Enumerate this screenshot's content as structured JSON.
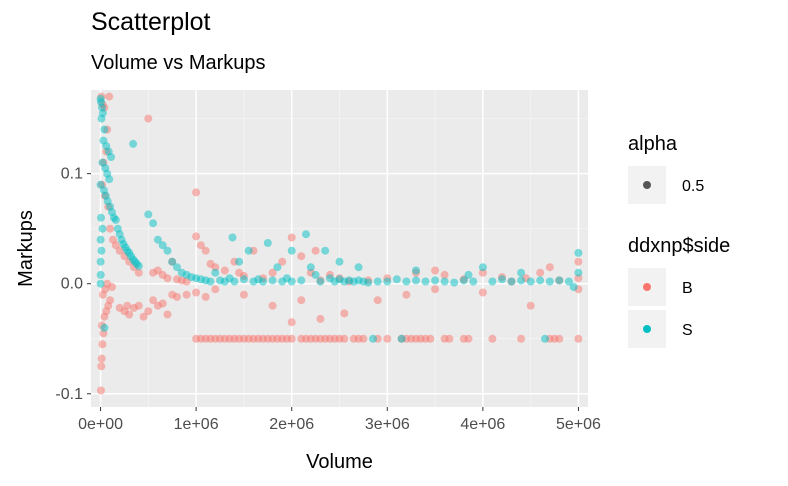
{
  "chart_data": {
    "type": "scatter",
    "title": "Scatterplot",
    "subtitle": "Volume vs Markups",
    "xlabel": "Volume",
    "ylabel": "Markups",
    "xlim": [
      -100000,
      5100000
    ],
    "ylim": [
      -0.112,
      0.176
    ],
    "x_ticks": [
      0,
      1000000,
      2000000,
      3000000,
      4000000,
      5000000
    ],
    "x_tick_labels": [
      "0e+00",
      "1e+06",
      "2e+06",
      "3e+06",
      "4e+06",
      "5e+06"
    ],
    "y_ticks": [
      -0.1,
      0.0,
      0.1
    ],
    "y_tick_labels": [
      "-0.1",
      "0.0",
      "0.1"
    ],
    "grid": true,
    "legend_position": "right",
    "legends": [
      {
        "title": "alpha",
        "entries": [
          {
            "label": "0.5",
            "color": "#000000"
          }
        ]
      },
      {
        "title": "ddxnp$side",
        "entries": [
          {
            "label": "B",
            "color": "#F8766D"
          },
          {
            "label": "S",
            "color": "#00BFC4"
          }
        ]
      }
    ],
    "point_alpha": 0.5,
    "series": [
      {
        "name": "B",
        "color": "#F8766D",
        "points": [
          [
            5000,
            -0.097
          ],
          [
            8000,
            -0.075
          ],
          [
            12000,
            -0.068
          ],
          [
            20000,
            -0.055
          ],
          [
            30000,
            -0.045
          ],
          [
            15000,
            -0.038
          ],
          [
            40000,
            -0.03
          ],
          [
            60000,
            -0.025
          ],
          [
            80000,
            -0.02
          ],
          [
            100000,
            -0.015
          ],
          [
            25000,
            -0.01
          ],
          [
            50000,
            -0.005
          ],
          [
            70000,
            0.0
          ],
          [
            120000,
            -0.003
          ],
          [
            10000,
            0.17
          ],
          [
            20000,
            0.163
          ],
          [
            40000,
            0.16
          ],
          [
            90000,
            0.17
          ],
          [
            70000,
            0.14
          ],
          [
            60000,
            0.12
          ],
          [
            30000,
            0.11
          ],
          [
            15000,
            0.09
          ],
          [
            45000,
            0.08
          ],
          [
            80000,
            0.07
          ],
          [
            100000,
            0.05
          ],
          [
            130000,
            0.04
          ],
          [
            160000,
            0.035
          ],
          [
            200000,
            0.03
          ],
          [
            250000,
            0.025
          ],
          [
            300000,
            0.02
          ],
          [
            350000,
            0.015
          ],
          [
            400000,
            0.01
          ],
          [
            500000,
            0.15
          ],
          [
            550000,
            0.01
          ],
          [
            600000,
            0.012
          ],
          [
            650000,
            0.008
          ],
          [
            700000,
            0.005
          ],
          [
            750000,
            0.02
          ],
          [
            800000,
            0.004
          ],
          [
            850000,
            0.003
          ],
          [
            900000,
            0.002
          ],
          [
            1000000,
            0.083
          ],
          [
            1000000,
            0.043
          ],
          [
            1050000,
            0.035
          ],
          [
            1100000,
            0.03
          ],
          [
            1150000,
            0.018
          ],
          [
            1200000,
            0.015
          ],
          [
            1300000,
            0.012
          ],
          [
            1400000,
            0.02
          ],
          [
            1450000,
            0.01
          ],
          [
            1500000,
            0.007
          ],
          [
            1600000,
            0.03
          ],
          [
            1700000,
            0.005
          ],
          [
            1800000,
            0.01
          ],
          [
            1900000,
            0.02
          ],
          [
            2000000,
            0.042
          ],
          [
            2100000,
            0.025
          ],
          [
            2200000,
            0.01
          ],
          [
            2250000,
            0.03
          ],
          [
            2300000,
            0.003
          ],
          [
            2400000,
            0.008
          ],
          [
            2500000,
            0.005
          ],
          [
            2600000,
            0.002
          ],
          [
            2800000,
            0.003
          ],
          [
            3000000,
            0.005
          ],
          [
            3300000,
            0.01
          ],
          [
            3500000,
            0.012
          ],
          [
            3600000,
            0.008
          ],
          [
            3800000,
            0.004
          ],
          [
            4000000,
            0.01
          ],
          [
            4200000,
            0.006
          ],
          [
            4300000,
            0.002
          ],
          [
            4450000,
            0.005
          ],
          [
            4600000,
            0.01
          ],
          [
            4700000,
            0.015
          ],
          [
            4800000,
            0.003
          ],
          [
            5000000,
            0.02
          ],
          [
            5000000,
            -0.005
          ],
          [
            200000,
            -0.022
          ],
          [
            250000,
            -0.025
          ],
          [
            280000,
            -0.02
          ],
          [
            300000,
            -0.028
          ],
          [
            350000,
            -0.022
          ],
          [
            400000,
            -0.02
          ],
          [
            450000,
            -0.03
          ],
          [
            500000,
            -0.025
          ],
          [
            550000,
            -0.015
          ],
          [
            600000,
            -0.02
          ],
          [
            650000,
            -0.018
          ],
          [
            700000,
            -0.028
          ],
          [
            750000,
            -0.01
          ],
          [
            800000,
            -0.012
          ],
          [
            900000,
            -0.01
          ],
          [
            1000000,
            -0.008
          ],
          [
            1100000,
            -0.012
          ],
          [
            1200000,
            -0.005
          ],
          [
            1500000,
            -0.01
          ],
          [
            1800000,
            -0.02
          ],
          [
            2000000,
            -0.035
          ],
          [
            2100000,
            -0.015
          ],
          [
            2300000,
            -0.032
          ],
          [
            2550000,
            -0.027
          ],
          [
            2900000,
            -0.015
          ],
          [
            3200000,
            -0.01
          ],
          [
            3500000,
            -0.005
          ],
          [
            4000000,
            -0.008
          ],
          [
            4500000,
            -0.02
          ],
          [
            5000000,
            0.005
          ],
          [
            1000000,
            -0.05
          ],
          [
            1050000,
            -0.05
          ],
          [
            1100000,
            -0.05
          ],
          [
            1150000,
            -0.05
          ],
          [
            1200000,
            -0.05
          ],
          [
            1250000,
            -0.05
          ],
          [
            1300000,
            -0.05
          ],
          [
            1350000,
            -0.05
          ],
          [
            1400000,
            -0.05
          ],
          [
            1450000,
            -0.05
          ],
          [
            1500000,
            -0.05
          ],
          [
            1550000,
            -0.05
          ],
          [
            1600000,
            -0.05
          ],
          [
            1650000,
            -0.05
          ],
          [
            1700000,
            -0.05
          ],
          [
            1750000,
            -0.05
          ],
          [
            1800000,
            -0.05
          ],
          [
            1850000,
            -0.05
          ],
          [
            1900000,
            -0.05
          ],
          [
            1950000,
            -0.05
          ],
          [
            2000000,
            -0.05
          ],
          [
            2100000,
            -0.05
          ],
          [
            2150000,
            -0.05
          ],
          [
            2200000,
            -0.05
          ],
          [
            2250000,
            -0.05
          ],
          [
            2300000,
            -0.05
          ],
          [
            2350000,
            -0.05
          ],
          [
            2400000,
            -0.05
          ],
          [
            2450000,
            -0.05
          ],
          [
            2500000,
            -0.05
          ],
          [
            2550000,
            -0.05
          ],
          [
            2650000,
            -0.05
          ],
          [
            2700000,
            -0.05
          ],
          [
            2750000,
            -0.05
          ],
          [
            2900000,
            -0.05
          ],
          [
            3000000,
            -0.05
          ],
          [
            3150000,
            -0.05
          ],
          [
            3200000,
            -0.05
          ],
          [
            3250000,
            -0.05
          ],
          [
            3300000,
            -0.05
          ],
          [
            3350000,
            -0.05
          ],
          [
            3400000,
            -0.05
          ],
          [
            3450000,
            -0.05
          ],
          [
            3600000,
            -0.05
          ],
          [
            3650000,
            -0.05
          ],
          [
            3800000,
            -0.05
          ],
          [
            3850000,
            -0.05
          ],
          [
            4100000,
            -0.05
          ],
          [
            4400000,
            -0.05
          ],
          [
            4700000,
            -0.05
          ],
          [
            4750000,
            -0.05
          ],
          [
            4800000,
            -0.05
          ],
          [
            5000000,
            -0.05
          ]
        ]
      },
      {
        "name": "S",
        "color": "#00BFC4",
        "points": [
          [
            0,
            0.168
          ],
          [
            5000,
            0.165
          ],
          [
            15000,
            0.16
          ],
          [
            25000,
            0.155
          ],
          [
            10000,
            0.15
          ],
          [
            40000,
            0.14
          ],
          [
            30000,
            0.13
          ],
          [
            60000,
            0.125
          ],
          [
            85000,
            0.12
          ],
          [
            110000,
            0.115
          ],
          [
            20000,
            0.11
          ],
          [
            50000,
            0.105
          ],
          [
            70000,
            0.1
          ],
          [
            90000,
            0.095
          ],
          [
            0,
            0.09
          ],
          [
            35000,
            0.085
          ],
          [
            55000,
            0.08
          ],
          [
            75000,
            0.075
          ],
          [
            100000,
            0.07
          ],
          [
            120000,
            0.065
          ],
          [
            140000,
            0.06
          ],
          [
            160000,
            0.058
          ],
          [
            180000,
            0.05
          ],
          [
            200000,
            0.045
          ],
          [
            220000,
            0.04
          ],
          [
            240000,
            0.036
          ],
          [
            260000,
            0.033
          ],
          [
            280000,
            0.03
          ],
          [
            300000,
            0.028
          ],
          [
            320000,
            0.025
          ],
          [
            340000,
            0.022
          ],
          [
            360000,
            0.02
          ],
          [
            380000,
            0.018
          ],
          [
            400000,
            0.016
          ],
          [
            0,
            0.04
          ],
          [
            0,
            0.02
          ],
          [
            0,
            0.0
          ],
          [
            5000,
            0.06
          ],
          [
            10000,
            0.03
          ],
          [
            20000,
            0.05
          ],
          [
            2000,
            0.008
          ],
          [
            40000,
            -0.04
          ],
          [
            340000,
            0.127
          ],
          [
            500000,
            0.063
          ],
          [
            550000,
            0.055
          ],
          [
            600000,
            0.04
          ],
          [
            650000,
            0.035
          ],
          [
            700000,
            0.03
          ],
          [
            750000,
            0.02
          ],
          [
            800000,
            0.015
          ],
          [
            850000,
            0.01
          ],
          [
            900000,
            0.008
          ],
          [
            950000,
            0.006
          ],
          [
            1000000,
            0.005
          ],
          [
            1050000,
            0.004
          ],
          [
            1100000,
            0.003
          ],
          [
            1150000,
            0.002
          ],
          [
            1200000,
            0.01
          ],
          [
            1250000,
            0.003
          ],
          [
            1300000,
            0.002
          ],
          [
            1350000,
            0.005
          ],
          [
            1400000,
            0.002
          ],
          [
            1500000,
            0.004
          ],
          [
            1600000,
            0.002
          ],
          [
            1650000,
            0.004
          ],
          [
            1700000,
            0.002
          ],
          [
            1800000,
            0.003
          ],
          [
            1850000,
            0.015
          ],
          [
            1900000,
            0.002
          ],
          [
            1950000,
            0.005
          ],
          [
            2000000,
            0.03
          ],
          [
            2000000,
            0.002
          ],
          [
            2100000,
            0.003
          ],
          [
            2200000,
            0.015
          ],
          [
            2300000,
            0.002
          ],
          [
            2350000,
            0.03
          ],
          [
            2400000,
            0.005
          ],
          [
            2450000,
            0.002
          ],
          [
            2500000,
            0.004
          ],
          [
            2550000,
            0.002
          ],
          [
            2600000,
            0.003
          ],
          [
            2650000,
            0.002
          ],
          [
            2700000,
            0.003
          ],
          [
            2750000,
            0.002
          ],
          [
            2800000,
            0.001
          ],
          [
            2900000,
            0.002
          ],
          [
            3000000,
            0.002
          ],
          [
            3100000,
            0.004
          ],
          [
            3200000,
            0.002
          ],
          [
            3300000,
            0.003
          ],
          [
            3400000,
            0.002
          ],
          [
            3500000,
            0.003
          ],
          [
            3600000,
            0.002
          ],
          [
            3700000,
            0.001
          ],
          [
            3800000,
            0.003
          ],
          [
            3900000,
            0.002
          ],
          [
            4000000,
            0.015
          ],
          [
            4100000,
            0.002
          ],
          [
            4200000,
            0.004
          ],
          [
            4300000,
            0.002
          ],
          [
            4400000,
            0.003
          ],
          [
            4500000,
            0.002
          ],
          [
            4600000,
            0.003
          ],
          [
            4700000,
            0.002
          ],
          [
            4800000,
            0.003
          ],
          [
            4900000,
            0.002
          ],
          [
            5000000,
            0.028
          ],
          [
            5000000,
            0.01
          ],
          [
            1380000,
            0.042
          ],
          [
            1550000,
            0.03
          ],
          [
            1750000,
            0.037
          ],
          [
            2150000,
            0.045
          ],
          [
            2500000,
            0.02
          ],
          [
            2850000,
            -0.05
          ],
          [
            3300000,
            0.012
          ],
          [
            3850000,
            0.008
          ],
          [
            4400000,
            0.01
          ],
          [
            4950000,
            -0.003
          ],
          [
            2250000,
            0.008
          ],
          [
            1450000,
            0.02
          ],
          [
            2700000,
            0.015
          ],
          [
            3150000,
            -0.05
          ],
          [
            4650000,
            -0.05
          ]
        ]
      }
    ]
  }
}
